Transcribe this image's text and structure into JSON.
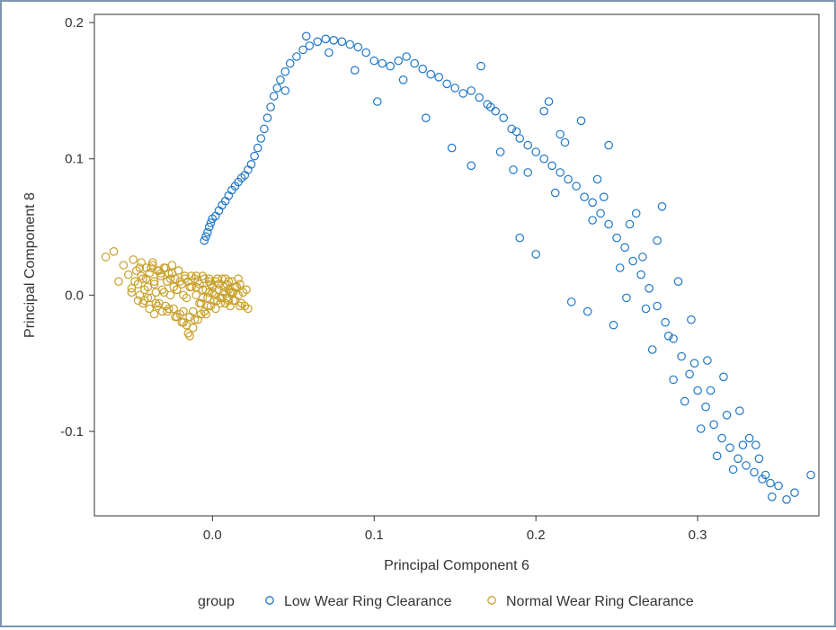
{
  "chart_data": {
    "type": "scatter",
    "title": "",
    "xlabel": "Principal Component 6",
    "ylabel": "Principal Component 8",
    "xlim": [
      -0.073,
      0.375
    ],
    "ylim": [
      -0.162,
      0.206
    ],
    "x_ticks": [
      0.0,
      0.1,
      0.2,
      0.3
    ],
    "y_ticks": [
      -0.1,
      0.0,
      0.1,
      0.2
    ],
    "x_tick_labels": [
      "0.0",
      "0.1",
      "0.2",
      "0.3"
    ],
    "y_tick_labels": [
      "-0.1",
      "0.0",
      "0.1",
      "0.2"
    ],
    "grid": false,
    "marker": "open-circle",
    "legend": {
      "title": "group",
      "placement": "bottom",
      "entries": [
        "Low Wear Ring Clearance",
        "Normal Wear Ring Clearance"
      ]
    },
    "series": [
      {
        "name": "Low Wear Ring Clearance",
        "color": "#1f77c8",
        "x": [
          -0.005,
          -0.004,
          -0.003,
          -0.002,
          -0.001,
          0.0,
          0.002,
          0.004,
          0.006,
          0.008,
          0.01,
          0.012,
          0.014,
          0.016,
          0.018,
          0.02,
          0.022,
          0.024,
          0.026,
          0.028,
          0.03,
          0.032,
          0.034,
          0.036,
          0.038,
          0.04,
          0.042,
          0.045,
          0.048,
          0.052,
          0.056,
          0.06,
          0.065,
          0.07,
          0.075,
          0.08,
          0.085,
          0.09,
          0.095,
          0.1,
          0.105,
          0.11,
          0.115,
          0.12,
          0.125,
          0.13,
          0.135,
          0.14,
          0.145,
          0.15,
          0.155,
          0.16,
          0.165,
          0.17,
          0.175,
          0.18,
          0.185,
          0.19,
          0.195,
          0.2,
          0.205,
          0.21,
          0.215,
          0.22,
          0.225,
          0.23,
          0.235,
          0.24,
          0.245,
          0.25,
          0.255,
          0.26,
          0.265,
          0.27,
          0.275,
          0.28,
          0.285,
          0.29,
          0.295,
          0.3,
          0.305,
          0.31,
          0.315,
          0.32,
          0.325,
          0.33,
          0.335,
          0.34,
          0.345,
          0.35,
          0.36,
          0.37,
          0.045,
          0.058,
          0.072,
          0.088,
          0.102,
          0.118,
          0.132,
          0.148,
          0.16,
          0.172,
          0.188,
          0.195,
          0.205,
          0.212,
          0.228,
          0.235,
          0.245,
          0.252,
          0.262,
          0.268,
          0.275,
          0.282,
          0.288,
          0.298,
          0.308,
          0.318,
          0.328,
          0.338,
          0.19,
          0.2,
          0.215,
          0.222,
          0.232,
          0.242,
          0.248,
          0.258,
          0.272,
          0.285,
          0.292,
          0.302,
          0.312,
          0.322,
          0.332,
          0.342,
          0.355,
          0.166,
          0.178,
          0.186,
          0.208,
          0.218,
          0.238,
          0.256,
          0.266,
          0.278,
          0.296,
          0.306,
          0.316,
          0.326,
          0.336,
          0.346
        ],
        "y": [
          0.04,
          0.043,
          0.046,
          0.05,
          0.053,
          0.056,
          0.058,
          0.062,
          0.066,
          0.069,
          0.073,
          0.077,
          0.08,
          0.083,
          0.086,
          0.088,
          0.092,
          0.096,
          0.102,
          0.108,
          0.115,
          0.122,
          0.13,
          0.138,
          0.146,
          0.152,
          0.158,
          0.164,
          0.17,
          0.175,
          0.18,
          0.183,
          0.186,
          0.188,
          0.187,
          0.186,
          0.184,
          0.182,
          0.178,
          0.172,
          0.17,
          0.168,
          0.172,
          0.175,
          0.17,
          0.166,
          0.162,
          0.16,
          0.155,
          0.152,
          0.148,
          0.15,
          0.145,
          0.14,
          0.135,
          0.13,
          0.122,
          0.115,
          0.11,
          0.105,
          0.1,
          0.095,
          0.09,
          0.085,
          0.08,
          0.072,
          0.068,
          0.06,
          0.052,
          0.042,
          0.035,
          0.025,
          0.015,
          0.005,
          -0.008,
          -0.02,
          -0.032,
          -0.045,
          -0.058,
          -0.07,
          -0.082,
          -0.095,
          -0.105,
          -0.112,
          -0.12,
          -0.125,
          -0.13,
          -0.135,
          -0.138,
          -0.14,
          -0.145,
          -0.132,
          0.15,
          0.19,
          0.178,
          0.165,
          0.142,
          0.158,
          0.13,
          0.108,
          0.095,
          0.138,
          0.12,
          0.09,
          0.135,
          0.075,
          0.128,
          0.055,
          0.11,
          0.02,
          0.06,
          -0.01,
          0.04,
          -0.03,
          0.01,
          -0.05,
          -0.07,
          -0.088,
          -0.11,
          -0.12,
          0.042,
          0.03,
          0.118,
          -0.005,
          -0.012,
          0.072,
          -0.022,
          0.052,
          -0.04,
          -0.062,
          -0.078,
          -0.098,
          -0.118,
          -0.128,
          -0.105,
          -0.132,
          -0.15,
          0.168,
          0.105,
          0.092,
          0.142,
          0.112,
          0.085,
          -0.002,
          0.028,
          0.065,
          -0.018,
          -0.048,
          -0.06,
          -0.085,
          -0.11,
          -0.148
        ]
      },
      {
        "name": "Normal Wear Ring Clearance",
        "color": "#c8a02a",
        "x": [
          -0.066,
          -0.061,
          -0.058,
          -0.055,
          -0.052,
          -0.05,
          -0.049,
          -0.047,
          -0.046,
          -0.045,
          -0.044,
          -0.043,
          -0.042,
          -0.041,
          -0.04,
          -0.039,
          -0.038,
          -0.037,
          -0.036,
          -0.035,
          -0.034,
          -0.033,
          -0.032,
          -0.031,
          -0.03,
          -0.029,
          -0.028,
          -0.027,
          -0.026,
          -0.025,
          -0.024,
          -0.023,
          -0.022,
          -0.021,
          -0.02,
          -0.019,
          -0.018,
          -0.017,
          -0.016,
          -0.015,
          -0.014,
          -0.013,
          -0.012,
          -0.011,
          -0.01,
          -0.009,
          -0.008,
          -0.007,
          -0.006,
          -0.005,
          -0.004,
          -0.003,
          -0.002,
          -0.001,
          0.0,
          0.001,
          0.002,
          0.003,
          0.004,
          0.005,
          0.006,
          0.007,
          0.008,
          0.009,
          0.01,
          0.011,
          0.012,
          0.013,
          0.014,
          0.015,
          0.016,
          0.017,
          0.018,
          0.019,
          0.02,
          0.021,
          0.022,
          -0.048,
          -0.046,
          -0.044,
          -0.042,
          -0.04,
          -0.038,
          -0.036,
          -0.034,
          -0.032,
          -0.03,
          -0.028,
          -0.026,
          -0.024,
          -0.022,
          -0.02,
          -0.018,
          -0.016,
          -0.014,
          -0.012,
          -0.01,
          -0.008,
          -0.006,
          -0.004,
          -0.002,
          0.0,
          0.002,
          0.004,
          0.006,
          0.008,
          0.01,
          0.012,
          0.014,
          -0.045,
          -0.041,
          -0.037,
          -0.033,
          -0.029,
          -0.025,
          -0.021,
          -0.017,
          -0.013,
          -0.009,
          -0.005,
          -0.001,
          0.003,
          0.007,
          0.011,
          -0.043,
          -0.039,
          -0.035,
          -0.031,
          -0.027,
          -0.023,
          -0.019,
          -0.015,
          -0.011,
          -0.007,
          -0.003,
          0.001,
          0.005,
          0.009,
          0.013,
          0.017,
          -0.05,
          -0.036,
          -0.028,
          -0.022,
          -0.018,
          -0.014,
          -0.01,
          -0.006,
          -0.002,
          0.004,
          0.01,
          0.016
        ],
        "y": [
          0.028,
          0.032,
          0.01,
          0.022,
          0.015,
          0.005,
          0.026,
          0.018,
          0.008,
          0.0,
          0.024,
          0.012,
          -0.004,
          0.02,
          0.006,
          0.016,
          -0.002,
          0.022,
          0.01,
          0.002,
          0.018,
          -0.006,
          0.014,
          0.004,
          0.02,
          -0.008,
          0.01,
          0.016,
          0.0,
          0.022,
          -0.01,
          0.012,
          0.004,
          0.018,
          -0.014,
          0.008,
          -0.02,
          0.014,
          -0.002,
          0.01,
          -0.016,
          0.006,
          -0.024,
          0.012,
          0.0,
          -0.018,
          0.008,
          -0.006,
          0.014,
          -0.012,
          0.004,
          -0.002,
          0.012,
          -0.008,
          0.006,
          0.0,
          0.01,
          -0.004,
          0.008,
          -0.002,
          0.012,
          0.002,
          -0.006,
          0.008,
          0.004,
          -0.008,
          0.01,
          0.002,
          -0.004,
          0.006,
          0.0,
          0.008,
          -0.006,
          0.002,
          -0.008,
          0.004,
          -0.01,
          0.01,
          -0.004,
          0.014,
          0.004,
          -0.002,
          0.02,
          0.008,
          -0.008,
          0.016,
          0.002,
          -0.012,
          0.012,
          0.006,
          -0.016,
          0.01,
          0.0,
          -0.022,
          0.006,
          -0.012,
          0.014,
          -0.006,
          0.004,
          -0.014,
          0.01,
          0.002,
          -0.01,
          0.004,
          -0.002,
          0.012,
          -0.004,
          0.002,
          0.006,
          0.02,
          0.012,
          0.024,
          0.018,
          0.02,
          0.016,
          0.018,
          0.012,
          0.014,
          0.01,
          0.012,
          0.008,
          0.012,
          0.006,
          0.002,
          -0.006,
          -0.01,
          -0.006,
          -0.012,
          -0.01,
          -0.016,
          -0.02,
          -0.028,
          -0.018,
          -0.014,
          -0.008,
          -0.004,
          -0.006,
          -0.002,
          -0.004,
          -0.008,
          0.002,
          -0.014,
          0.01,
          0.004,
          -0.012,
          -0.03,
          0.006,
          -0.002,
          0.002,
          0.008,
          0.01,
          0.012
        ]
      }
    ]
  }
}
